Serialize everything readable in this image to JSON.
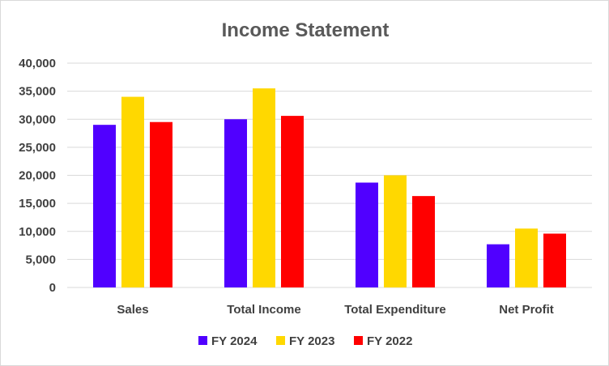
{
  "chart_data": {
    "type": "bar",
    "title": "Income Statement",
    "categories": [
      "Sales",
      "Total Income",
      "Total Expenditure",
      "Net Profit"
    ],
    "series": [
      {
        "name": "FY 2024",
        "color": "#5000ff",
        "values": [
          29000,
          30000,
          18700,
          7700
        ]
      },
      {
        "name": "FY 2023",
        "color": "#ffd800",
        "values": [
          34000,
          35500,
          20000,
          10500
        ]
      },
      {
        "name": "FY 2022",
        "color": "#ff0000",
        "values": [
          29500,
          30600,
          16300,
          9600
        ]
      }
    ],
    "ylim": [
      0,
      40000
    ],
    "yticks": [
      "0",
      "5,000",
      "10,000",
      "15,000",
      "20,000",
      "25,000",
      "30,000",
      "35,000",
      "40,000"
    ],
    "grid": true,
    "legend": "bottom"
  }
}
